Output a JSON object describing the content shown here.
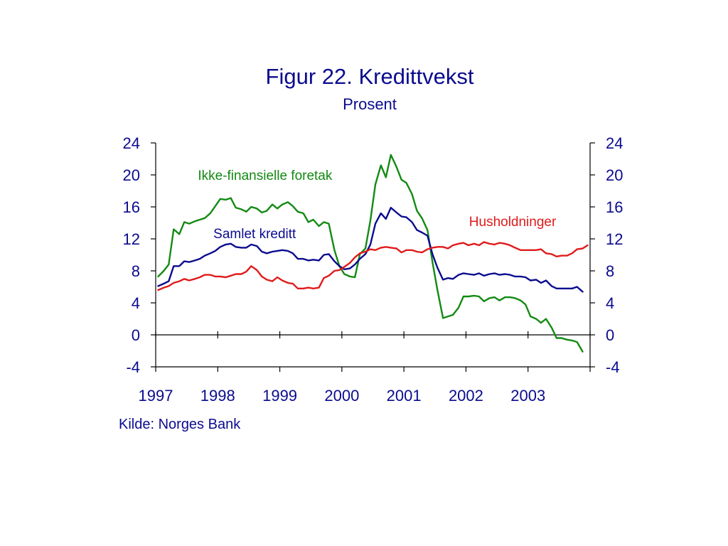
{
  "title": "Figur 22. Kredittvekst",
  "subtitle": "Prosent",
  "source": "Kilde: Norges Bank",
  "colors": {
    "text": "#0b0b8f",
    "axis": "#000000"
  },
  "chart_data": {
    "type": "line",
    "title": "Figur 22. Kredittvekst",
    "subtitle": "Prosent",
    "xlim": [
      1997,
      2004
    ],
    "ylim": [
      -4,
      24
    ],
    "yticks": [
      -4,
      0,
      4,
      8,
      12,
      16,
      20,
      24
    ],
    "xticks": [
      1997,
      1998,
      1999,
      2000,
      2001,
      2002,
      2003
    ],
    "grid": false,
    "legend": "inline",
    "series": [
      {
        "name": "Ikke-finansielle foretak",
        "color": "#138a13",
        "x": [
          1997.04,
          1997.13,
          1997.21,
          1997.29,
          1997.38,
          1997.46,
          1997.54,
          1997.63,
          1997.71,
          1997.79,
          1997.88,
          1997.96,
          1998.04,
          1998.13,
          1998.21,
          1998.29,
          1998.38,
          1998.46,
          1998.54,
          1998.63,
          1998.71,
          1998.79,
          1998.88,
          1998.96,
          1999.04,
          1999.13,
          1999.21,
          1999.29,
          1999.38,
          1999.46,
          1999.54,
          1999.63,
          1999.71,
          1999.79,
          1999.88,
          1999.96,
          2000.04,
          2000.13,
          2000.21,
          2000.29,
          2000.38,
          2000.46,
          2000.54,
          2000.63,
          2000.71,
          2000.79,
          2000.88,
          2000.96,
          2001.04,
          2001.13,
          2001.21,
          2001.29,
          2001.38,
          2001.46,
          2001.54,
          2001.63,
          2001.71,
          2001.79,
          2001.88,
          2001.96,
          2002.04,
          2002.13,
          2002.21,
          2002.29,
          2002.38,
          2002.46,
          2002.54,
          2002.63,
          2002.71,
          2002.79,
          2002.88,
          2002.96,
          2003.04,
          2003.13,
          2003.21,
          2003.29,
          2003.38,
          2003.46,
          2003.54,
          2003.63,
          2003.71,
          2003.79,
          2003.88
        ],
        "values": [
          7.3,
          8.0,
          8.8,
          13.2,
          12.6,
          14.1,
          13.9,
          14.2,
          14.4,
          14.6,
          15.2,
          16.1,
          17.0,
          16.9,
          17.1,
          15.9,
          15.7,
          15.4,
          16.0,
          15.8,
          15.3,
          15.5,
          16.3,
          15.8,
          16.3,
          16.6,
          16.1,
          15.4,
          15.2,
          14.1,
          14.4,
          13.6,
          14.1,
          13.9,
          10.6,
          8.6,
          7.6,
          7.3,
          7.2,
          10.1,
          10.8,
          14.3,
          18.8,
          21.2,
          19.7,
          22.5,
          21.0,
          19.4,
          19.0,
          17.6,
          15.5,
          14.6,
          13.1,
          9.1,
          5.6,
          2.1,
          2.3,
          2.5,
          3.4,
          4.8,
          4.8,
          4.9,
          4.8,
          4.2,
          4.6,
          4.7,
          4.3,
          4.7,
          4.7,
          4.6,
          4.3,
          3.8,
          2.3,
          2.0,
          1.5,
          2.0,
          0.9,
          -0.4,
          -0.4,
          -0.6,
          -0.7,
          -0.9,
          -2.1
        ]
      },
      {
        "name": "Samlet kreditt",
        "color": "#0b0b8f",
        "x": [
          1997.04,
          1997.13,
          1997.21,
          1997.29,
          1997.38,
          1997.46,
          1997.54,
          1997.63,
          1997.71,
          1997.79,
          1997.88,
          1997.96,
          1998.04,
          1998.13,
          1998.21,
          1998.29,
          1998.38,
          1998.46,
          1998.54,
          1998.63,
          1998.71,
          1998.79,
          1998.88,
          1998.96,
          1999.04,
          1999.13,
          1999.21,
          1999.29,
          1999.38,
          1999.46,
          1999.54,
          1999.63,
          1999.71,
          1999.79,
          1999.88,
          1999.96,
          2000.04,
          2000.13,
          2000.21,
          2000.29,
          2000.38,
          2000.46,
          2000.54,
          2000.63,
          2000.71,
          2000.79,
          2000.88,
          2000.96,
          2001.04,
          2001.13,
          2001.21,
          2001.29,
          2001.38,
          2001.46,
          2001.54,
          2001.63,
          2001.71,
          2001.79,
          2001.88,
          2001.96,
          2002.04,
          2002.13,
          2002.21,
          2002.29,
          2002.38,
          2002.46,
          2002.54,
          2002.63,
          2002.71,
          2002.79,
          2002.88,
          2002.96,
          2003.04,
          2003.13,
          2003.21,
          2003.29,
          2003.38,
          2003.46,
          2003.54,
          2003.63,
          2003.71,
          2003.79,
          2003.88
        ],
        "values": [
          6.1,
          6.4,
          6.7,
          8.6,
          8.6,
          9.2,
          9.1,
          9.3,
          9.5,
          9.9,
          10.2,
          10.5,
          11.0,
          11.3,
          11.4,
          11.0,
          10.9,
          10.9,
          11.3,
          11.1,
          10.4,
          10.2,
          10.4,
          10.5,
          10.6,
          10.5,
          10.2,
          9.5,
          9.5,
          9.3,
          9.4,
          9.3,
          10.0,
          10.1,
          9.2,
          8.6,
          8.2,
          8.3,
          8.8,
          9.5,
          10.1,
          11.3,
          13.9,
          15.2,
          14.5,
          15.9,
          15.3,
          14.8,
          14.7,
          14.1,
          13.1,
          12.8,
          12.4,
          10.1,
          8.4,
          6.9,
          7.1,
          7.0,
          7.5,
          7.7,
          7.6,
          7.5,
          7.7,
          7.4,
          7.6,
          7.7,
          7.5,
          7.6,
          7.5,
          7.3,
          7.3,
          7.2,
          6.8,
          6.9,
          6.5,
          6.8,
          6.1,
          5.8,
          5.8,
          5.8,
          5.8,
          6.0,
          5.4
        ]
      },
      {
        "name": "Husholdninger",
        "color": "#e01b1b",
        "x": [
          1997.04,
          1997.13,
          1997.21,
          1997.29,
          1997.38,
          1997.46,
          1997.54,
          1997.63,
          1997.71,
          1997.79,
          1997.88,
          1997.96,
          1998.04,
          1998.13,
          1998.21,
          1998.29,
          1998.38,
          1998.46,
          1998.54,
          1998.63,
          1998.71,
          1998.79,
          1998.88,
          1998.96,
          1999.04,
          1999.13,
          1999.21,
          1999.29,
          1999.38,
          1999.46,
          1999.54,
          1999.63,
          1999.71,
          1999.79,
          1999.88,
          1999.96,
          2000.04,
          2000.13,
          2000.21,
          2000.29,
          2000.38,
          2000.46,
          2000.54,
          2000.63,
          2000.71,
          2000.79,
          2000.88,
          2000.96,
          2001.04,
          2001.13,
          2001.21,
          2001.29,
          2001.38,
          2001.46,
          2001.54,
          2001.63,
          2001.71,
          2001.79,
          2001.88,
          2001.96,
          2002.04,
          2002.13,
          2002.21,
          2002.29,
          2002.38,
          2002.46,
          2002.54,
          2002.63,
          2002.71,
          2002.79,
          2002.88,
          2002.96,
          2003.04,
          2003.13,
          2003.21,
          2003.29,
          2003.38,
          2003.46,
          2003.54,
          2003.63,
          2003.71,
          2003.79,
          2003.88,
          2003.96
        ],
        "values": [
          5.6,
          5.9,
          6.1,
          6.5,
          6.7,
          7.0,
          6.8,
          7.0,
          7.2,
          7.5,
          7.5,
          7.3,
          7.3,
          7.2,
          7.4,
          7.6,
          7.6,
          7.9,
          8.6,
          8.1,
          7.3,
          6.9,
          6.7,
          7.2,
          6.8,
          6.5,
          6.4,
          5.8,
          5.8,
          5.9,
          5.8,
          5.9,
          7.1,
          7.4,
          8.0,
          8.1,
          8.5,
          9.0,
          9.7,
          10.2,
          10.4,
          10.7,
          10.6,
          10.9,
          11.0,
          10.9,
          10.8,
          10.3,
          10.6,
          10.6,
          10.4,
          10.3,
          10.7,
          10.9,
          11.0,
          11.0,
          10.8,
          11.2,
          11.4,
          11.5,
          11.2,
          11.4,
          11.2,
          11.6,
          11.4,
          11.3,
          11.5,
          11.4,
          11.2,
          10.9,
          10.6,
          10.6,
          10.6,
          10.6,
          10.7,
          10.2,
          10.1,
          9.8,
          9.9,
          9.9,
          10.2,
          10.7,
          10.8,
          11.2
        ]
      }
    ],
    "labels": [
      {
        "series": "Ikke-finansielle foretak",
        "text": "Ikke-finansielle foretak",
        "x": 1997.68,
        "y": 19.4
      },
      {
        "series": "Samlet kreditt",
        "text": "Samlet kreditt",
        "x": 1997.93,
        "y": 12.1
      },
      {
        "series": "Husholdninger",
        "text": "Husholdninger",
        "x": 2002.05,
        "y": 13.6
      }
    ]
  }
}
